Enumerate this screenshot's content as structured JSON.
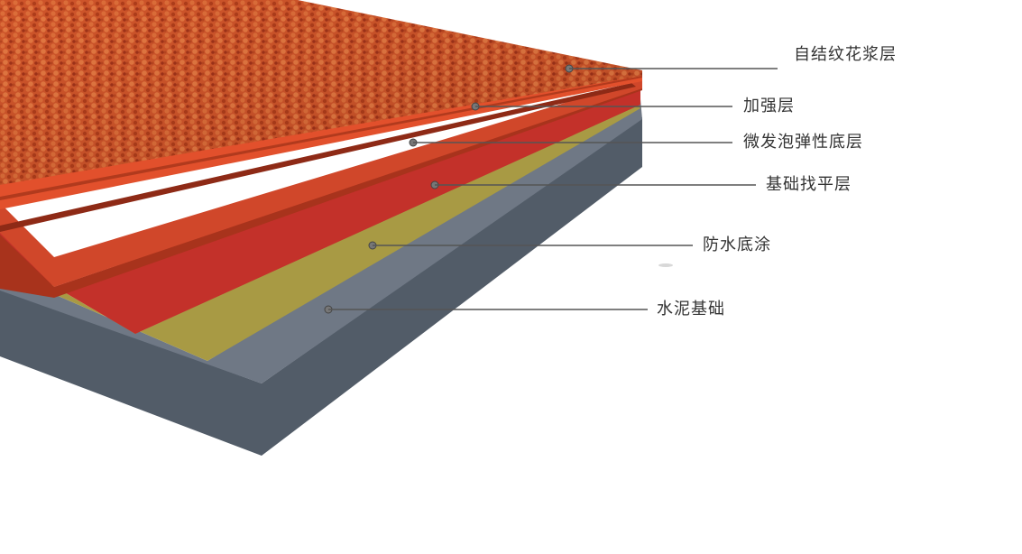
{
  "colors": {
    "surface": "#d4542a",
    "surface_dark": "#a8381a",
    "reinforce": "#cf4527",
    "foam": "#b8321f",
    "leveling": "#c3312a",
    "waterproof": "#a89a44",
    "cement_top": "#6f7885",
    "cement_side": "#525c68",
    "leader": "#555555"
  },
  "layers": [
    {
      "id": "surface",
      "label": "自结纹花浆层"
    },
    {
      "id": "reinforce",
      "label": "加强层"
    },
    {
      "id": "foam",
      "label": "微发泡弹性底层"
    },
    {
      "id": "leveling",
      "label": "基础找平层"
    },
    {
      "id": "waterproof",
      "label": "防水底涂"
    },
    {
      "id": "cement",
      "label": "水泥基础"
    }
  ]
}
